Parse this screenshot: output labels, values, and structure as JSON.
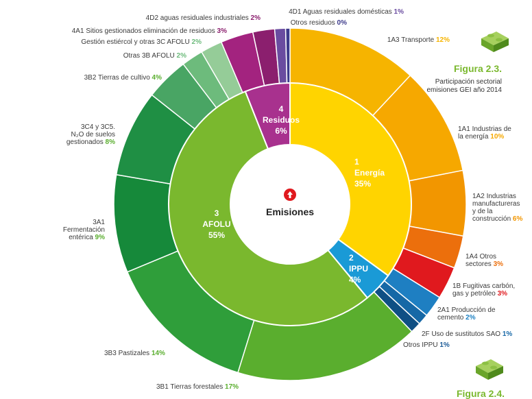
{
  "figure": {
    "title": "Figura 2.3.",
    "caption": "Participación sectorial emisiones GEI año 2014",
    "next_title": "Figura 2.4."
  },
  "chart_data": {
    "type": "pie",
    "center_label": "Emisiones",
    "inner": [
      {
        "code": "1",
        "name": "Energía",
        "value": 35,
        "label": "35%",
        "color": "#ffd400"
      },
      {
        "code": "2",
        "name": "IPPU",
        "value": 4,
        "label": "4%",
        "color": "#1a9ad6"
      },
      {
        "code": "3",
        "name": "AFOLU",
        "value": 55,
        "label": "55%",
        "color": "#7ab82e"
      },
      {
        "code": "4",
        "name": "Residuos",
        "value": 6,
        "label": "6%",
        "color": "#a8318e"
      }
    ],
    "outer": [
      {
        "name": "1A3 Transporte",
        "value": 12,
        "label": "12%",
        "color": "#f6b400"
      },
      {
        "name": "1A1 Industrias de la energía",
        "value": 10,
        "label": "10%",
        "color": "#f6a800"
      },
      {
        "name": "1A2 Industrias manufactureras y de la construcción",
        "value": 6,
        "label": "6%",
        "color": "#f29600"
      },
      {
        "name": "1A4 Otros sectores",
        "value": 3,
        "label": "3%",
        "color": "#ec6f0c"
      },
      {
        "name": "1B Fugitivas carbón, gas y petróleo",
        "value": 3,
        "label": "3%",
        "color": "#e0191e"
      },
      {
        "name": "2A1 Producción de cemento",
        "value": 2,
        "label": "2%",
        "color": "#1e7fc2"
      },
      {
        "name": "2F Uso de sustitutos SAO",
        "value": 1,
        "label": "1%",
        "color": "#1668a6"
      },
      {
        "name": "Otros IPPU",
        "value": 1,
        "label": "1%",
        "color": "#0f4f84"
      },
      {
        "name": "3B1 Tierras forestales",
        "value": 17,
        "label": "17%",
        "color": "#5aae2e"
      },
      {
        "name": "3B3 Pastizales",
        "value": 14,
        "label": "14%",
        "color": "#2f9e3a"
      },
      {
        "name": "3A1 Fermentación entérica",
        "value": 9,
        "label": "9%",
        "color": "#16893a"
      },
      {
        "name": "3C4 y 3C5. N2O de suelos gestionados",
        "value": 8,
        "label": "8%",
        "color": "#1f8f44"
      },
      {
        "name": "3B2 Tierras de cultivo",
        "value": 4,
        "label": "4%",
        "color": "#49a564"
      },
      {
        "name": "Otras 3B AFOLU",
        "value": 2,
        "label": "2%",
        "color": "#6dbb7c"
      },
      {
        "name": "Gestión estiércol y otras 3C AFOLU",
        "value": 2,
        "label": "2%",
        "color": "#95cc98"
      },
      {
        "name": "4A1 Sitios gestionados eliminación de residuos",
        "value": 3,
        "label": "3%",
        "color": "#a3237f"
      },
      {
        "name": "4D2 aguas residuales industriales",
        "value": 2,
        "label": "2%",
        "color": "#8b1f6e"
      },
      {
        "name": "4D1 Aguas residuales domésticas",
        "value": 1,
        "label": "1%",
        "color": "#6a4ca0"
      },
      {
        "name": "Otros residuos",
        "value": 0,
        "label": "0%",
        "color": "#3d3a8a"
      }
    ]
  }
}
